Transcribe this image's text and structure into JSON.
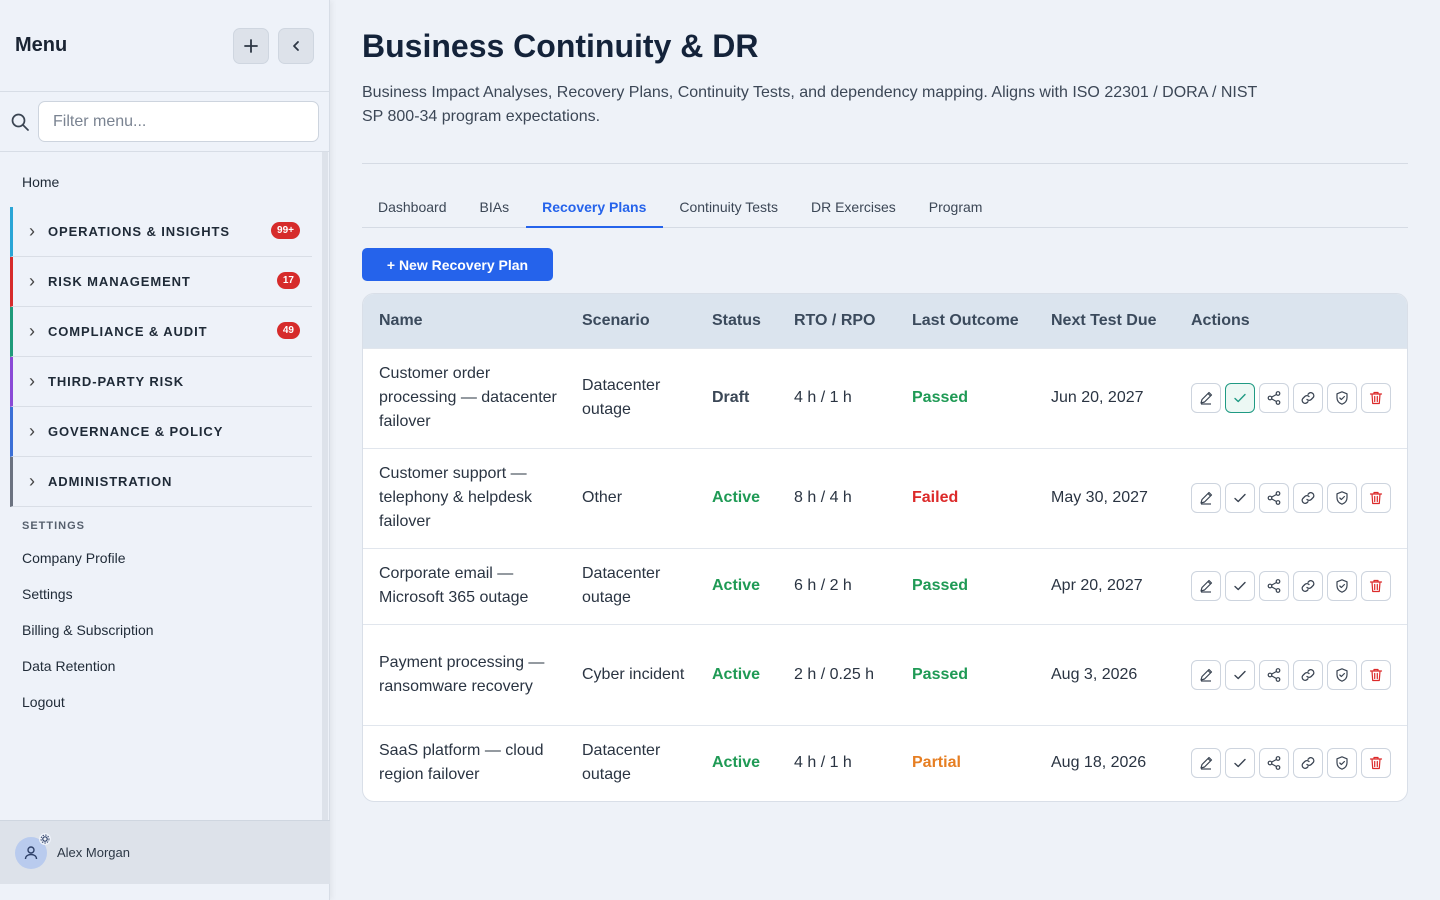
{
  "sidebar": {
    "title": "Menu",
    "filter_placeholder": "Filter menu...",
    "home": "Home",
    "groups": [
      {
        "label": "OPERATIONS & INSIGHTS",
        "badge": "99+",
        "color": "#2aa5d6"
      },
      {
        "label": "RISK MANAGEMENT",
        "badge": "17",
        "color": "#d62b2b"
      },
      {
        "label": "COMPLIANCE & AUDIT",
        "badge": "49",
        "color": "#1f9a7a"
      },
      {
        "label": "THIRD-PARTY RISK",
        "badge": "",
        "color": "#8a4ad6"
      },
      {
        "label": "GOVERNANCE & POLICY",
        "badge": "",
        "color": "#3b6fd6"
      },
      {
        "label": "ADMINISTRATION",
        "badge": "",
        "color": "#6b7280"
      }
    ],
    "settings_header": "SETTINGS",
    "settings_items": [
      "Company Profile",
      "Settings",
      "Billing & Subscription",
      "Data Retention",
      "Logout"
    ],
    "user_name": "Alex Morgan"
  },
  "header": {
    "title": "Business Continuity & DR",
    "description": "Business Impact Analyses, Recovery Plans, Continuity Tests, and dependency mapping. Aligns with ISO 22301 / DORA / NIST SP 800-34 program expectations."
  },
  "tabs": [
    "Dashboard",
    "BIAs",
    "Recovery Plans",
    "Continuity Tests",
    "DR Exercises",
    "Program"
  ],
  "active_tab": "Recovery Plans",
  "new_button": "+ New Recovery Plan",
  "table": {
    "columns": [
      "Name",
      "Scenario",
      "Status",
      "RTO / RPO",
      "Last Outcome",
      "Next Test Due",
      "Actions"
    ],
    "rows": [
      {
        "name": "Customer order processing — datacenter failover",
        "scenario": "Datacenter outage",
        "status": "Draft",
        "rto_rpo": "4 h / 1 h",
        "outcome": "Passed",
        "next_due": "Jun 20, 2027"
      },
      {
        "name": "Customer support — telephony & helpdesk failover",
        "scenario": "Other",
        "status": "Active",
        "rto_rpo": "8 h / 4 h",
        "outcome": "Failed",
        "next_due": "May 30, 2027"
      },
      {
        "name": "Corporate email — Microsoft 365 outage",
        "scenario": "Datacenter outage",
        "status": "Active",
        "rto_rpo": "6 h / 2 h",
        "outcome": "Passed",
        "next_due": "Apr 20, 2027"
      },
      {
        "name": "Payment processing — ransomware recovery",
        "scenario": "Cyber incident",
        "status": "Active",
        "rto_rpo": "2 h / 0.25 h",
        "outcome": "Passed",
        "next_due": "Aug 3, 2026"
      },
      {
        "name": "SaaS platform — cloud region failover",
        "scenario": "Datacenter outage",
        "status": "Active",
        "rto_rpo": "4 h / 1 h",
        "outcome": "Partial",
        "next_due": "Aug 18, 2026"
      }
    ]
  },
  "icons": {
    "head_buttons": [
      "plus-icon",
      "chevron-left-icon"
    ],
    "row_actions": [
      "edit-icon",
      "check-icon",
      "share-icon",
      "link-icon",
      "shield-icon",
      "trash-icon"
    ]
  }
}
